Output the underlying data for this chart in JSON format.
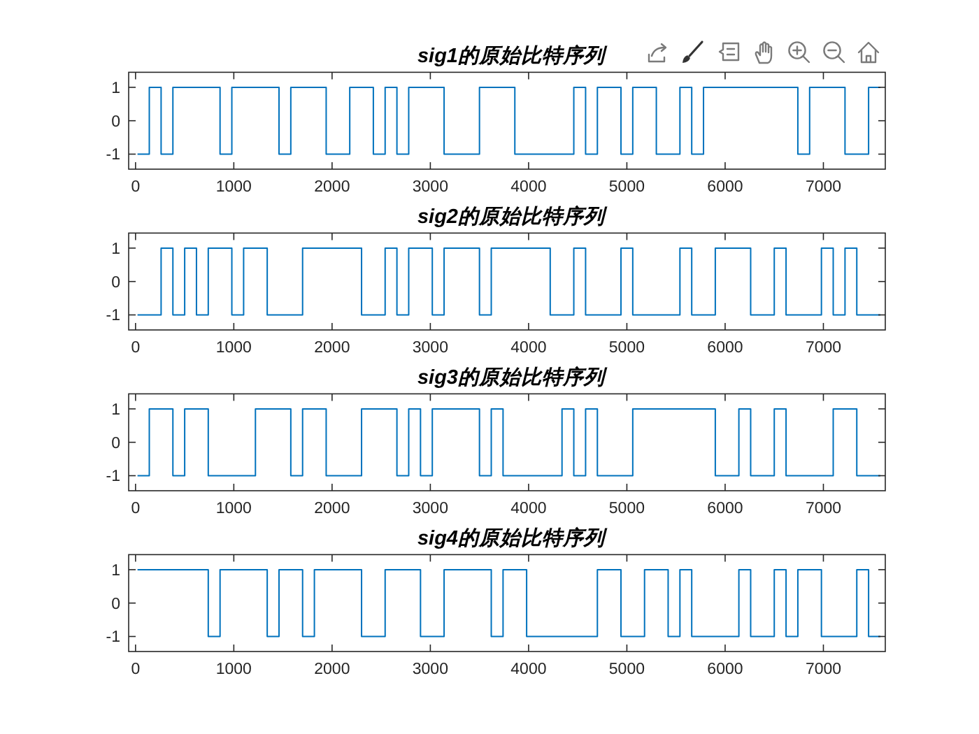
{
  "chart_data": [
    {
      "type": "step",
      "title": "sig1的原始比特序列",
      "color": "#0072bd",
      "xlim": [
        -70,
        7630
      ],
      "xticks": [
        0,
        1000,
        2000,
        3000,
        4000,
        5000,
        6000,
        7000
      ],
      "ylim": [
        -1.45,
        1.45
      ],
      "yticks": [
        -1,
        0,
        1
      ],
      "x": [
        20,
        140,
        260,
        380,
        860,
        980,
        1460,
        1580,
        1940,
        2180,
        2420,
        2540,
        2660,
        2780,
        3140,
        3500,
        3860,
        4460,
        4580,
        4700,
        4940,
        5060,
        5300,
        5540,
        5660,
        5780,
        6740,
        6860,
        7220,
        7460,
        7580
      ],
      "values": [
        -1,
        1,
        -1,
        1,
        -1,
        1,
        -1,
        1,
        -1,
        1,
        -1,
        1,
        -1,
        1,
        -1,
        1,
        -1,
        1,
        -1,
        1,
        -1,
        1,
        -1,
        1,
        -1,
        1,
        -1,
        1,
        -1,
        1,
        1
      ]
    },
    {
      "type": "step",
      "title": "sig2的原始比特序列",
      "color": "#0072bd",
      "xlim": [
        -70,
        7630
      ],
      "xticks": [
        0,
        1000,
        2000,
        3000,
        4000,
        5000,
        6000,
        7000
      ],
      "ylim": [
        -1.45,
        1.45
      ],
      "yticks": [
        -1,
        0,
        1
      ],
      "x": [
        20,
        260,
        380,
        500,
        620,
        740,
        980,
        1100,
        1340,
        1700,
        2300,
        2540,
        2660,
        2780,
        3020,
        3140,
        3500,
        3620,
        4220,
        4460,
        4580,
        4940,
        5060,
        5540,
        5660,
        5900,
        6260,
        6500,
        6620,
        6980,
        7100,
        7220,
        7340,
        7580
      ],
      "values": [
        -1,
        1,
        -1,
        1,
        -1,
        1,
        -1,
        1,
        -1,
        1,
        -1,
        1,
        -1,
        1,
        -1,
        1,
        -1,
        1,
        -1,
        1,
        -1,
        1,
        -1,
        1,
        -1,
        1,
        -1,
        1,
        -1,
        1,
        -1,
        1,
        -1,
        -1
      ]
    },
    {
      "type": "step",
      "title": "sig3的原始比特序列",
      "color": "#0072bd",
      "xlim": [
        -70,
        7630
      ],
      "xticks": [
        0,
        1000,
        2000,
        3000,
        4000,
        5000,
        6000,
        7000
      ],
      "ylim": [
        -1.45,
        1.45
      ],
      "yticks": [
        -1,
        0,
        1
      ],
      "x": [
        20,
        140,
        380,
        500,
        740,
        1220,
        1580,
        1700,
        1940,
        2300,
        2660,
        2780,
        2900,
        3020,
        3500,
        3620,
        3740,
        4340,
        4460,
        4580,
        4700,
        5060,
        5900,
        6140,
        6260,
        6500,
        6620,
        7100,
        7340,
        7580
      ],
      "values": [
        -1,
        1,
        -1,
        1,
        -1,
        1,
        -1,
        1,
        -1,
        1,
        -1,
        1,
        -1,
        1,
        -1,
        1,
        -1,
        1,
        -1,
        1,
        -1,
        1,
        -1,
        1,
        -1,
        1,
        -1,
        1,
        -1,
        -1
      ]
    },
    {
      "type": "step",
      "title": "sig4的原始比特序列",
      "color": "#0072bd",
      "xlim": [
        -70,
        7630
      ],
      "xticks": [
        0,
        1000,
        2000,
        3000,
        4000,
        5000,
        6000,
        7000
      ],
      "ylim": [
        -1.45,
        1.45
      ],
      "yticks": [
        -1,
        0,
        1
      ],
      "x": [
        20,
        740,
        860,
        1340,
        1460,
        1700,
        1820,
        2300,
        2540,
        2900,
        3140,
        3620,
        3740,
        3980,
        4700,
        4940,
        5180,
        5420,
        5540,
        5660,
        6140,
        6260,
        6500,
        6620,
        6740,
        6980,
        7340,
        7460,
        7580
      ],
      "values": [
        1,
        -1,
        1,
        -1,
        1,
        -1,
        1,
        -1,
        1,
        -1,
        1,
        -1,
        1,
        -1,
        1,
        -1,
        1,
        -1,
        1,
        -1,
        1,
        -1,
        1,
        -1,
        1,
        -1,
        1,
        -1,
        -1
      ]
    }
  ]
}
